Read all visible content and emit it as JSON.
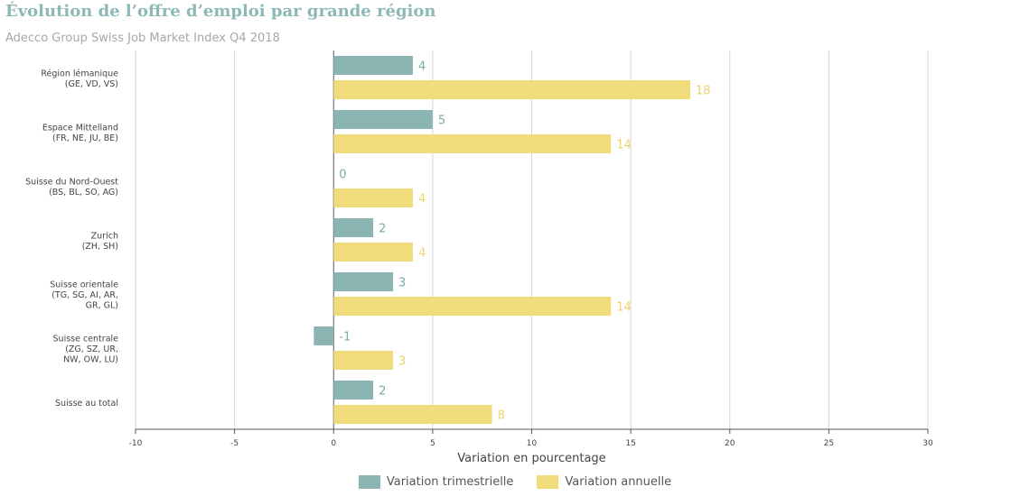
{
  "chart_data": {
    "type": "bar",
    "orientation": "horizontal",
    "title": "Évolution de l’offre d’emploi par grande région",
    "subtitle": "Adecco Group Swiss Job Market Index Q4 2018",
    "xlabel": "Variation en pourcentage",
    "xlim": [
      -10,
      30
    ],
    "xticks": [
      -10,
      -5,
      0,
      5,
      10,
      15,
      20,
      25,
      30
    ],
    "grid": true,
    "legend_position": "bottom-center",
    "categories": [
      [
        "Région lémanique",
        "(GE, VD, VS)"
      ],
      [
        "Espace Mittelland",
        "(FR, NE, JU, BE)"
      ],
      [
        "Suisse du Nord-Ouest",
        "(BS, BL, SO, AG)"
      ],
      [
        "Zurich",
        "(ZH, SH)"
      ],
      [
        "Suisse orientale",
        "(TG, SG, AI, AR,",
        "GR, GL)"
      ],
      [
        "Suisse centrale",
        "(ZG, SZ, UR,",
        "NW, OW, LU)"
      ],
      [
        "Suisse au total"
      ]
    ],
    "series": [
      {
        "name": "Variation trimestrielle",
        "color": "#8ab5b3",
        "label_color": "#7ba9a6",
        "values": [
          4,
          5,
          0,
          2,
          3,
          -1,
          2
        ]
      },
      {
        "name": "Variation annuelle",
        "color": "#f1dc7c",
        "label_color": "#ecd36a",
        "values": [
          18,
          14,
          4,
          4,
          14,
          3,
          8
        ]
      }
    ]
  }
}
